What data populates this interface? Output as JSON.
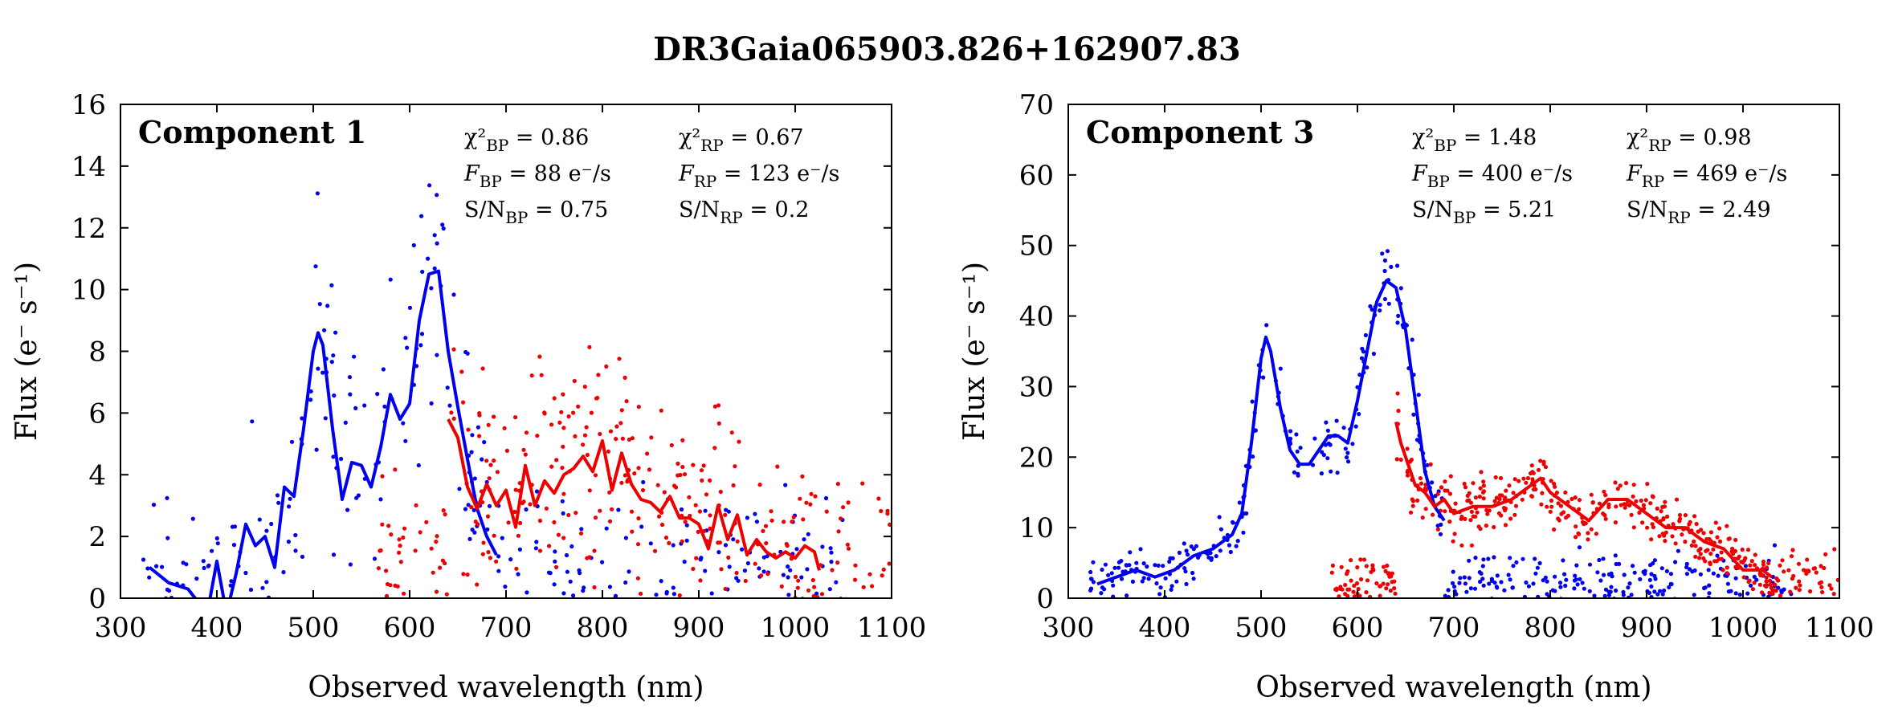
{
  "figure_title": "DR3Gaia065903.826+162907.83",
  "chart_data": [
    {
      "type": "line",
      "panel": "Component 1",
      "title": "Component 1",
      "xlabel": "Observed wavelength (nm)",
      "ylabel": "Flux (e⁻ s⁻¹)",
      "xlim": [
        300,
        1100
      ],
      "ylim": [
        0,
        16
      ],
      "xticks": [
        300,
        400,
        500,
        600,
        700,
        800,
        900,
        1000,
        1100
      ],
      "yticks": [
        0,
        2,
        4,
        6,
        8,
        10,
        12,
        14,
        16
      ],
      "grid": false,
      "stats": {
        "chi2_bp": "0.86",
        "chi2_rp": "0.67",
        "f_bp": "88 e⁻/s",
        "f_rp": "123 e⁻/s",
        "sn_bp": "0.75",
        "sn_rp": "0.2"
      },
      "series": [
        {
          "name": "BP",
          "color": "#0000ee",
          "x": [
            330,
            350,
            370,
            390,
            400,
            410,
            420,
            430,
            440,
            450,
            460,
            470,
            480,
            490,
            500,
            505,
            510,
            520,
            530,
            540,
            550,
            560,
            570,
            580,
            590,
            600,
            610,
            620,
            630,
            640,
            650,
            660,
            670,
            680,
            690
          ],
          "y": [
            1.0,
            0.5,
            0.3,
            -0.5,
            1.2,
            -0.5,
            0.8,
            2.4,
            1.7,
            2.0,
            1.0,
            3.6,
            3.3,
            5.5,
            8.0,
            8.6,
            8.2,
            5.5,
            3.2,
            4.4,
            4.3,
            3.6,
            4.9,
            6.6,
            5.8,
            6.3,
            9.0,
            10.5,
            10.6,
            8.0,
            6.2,
            4.5,
            2.9,
            2.0,
            1.4
          ]
        },
        {
          "name": "RP",
          "color": "#ee0000",
          "x": [
            640,
            650,
            660,
            670,
            680,
            690,
            700,
            710,
            720,
            730,
            740,
            750,
            760,
            770,
            780,
            790,
            800,
            810,
            820,
            830,
            840,
            850,
            860,
            870,
            880,
            890,
            900,
            910,
            920,
            930,
            940,
            950,
            960,
            970,
            980,
            990,
            1000,
            1010,
            1020,
            1025
          ],
          "y": [
            5.8,
            5.2,
            3.6,
            2.9,
            3.7,
            3.0,
            3.5,
            2.3,
            4.3,
            3.0,
            3.8,
            3.4,
            4.0,
            4.2,
            4.6,
            4.1,
            5.1,
            3.5,
            4.7,
            3.7,
            3.2,
            3.1,
            2.8,
            3.3,
            2.6,
            2.6,
            2.4,
            1.6,
            3.0,
            1.9,
            2.7,
            1.4,
            1.9,
            1.5,
            1.3,
            1.5,
            1.3,
            1.7,
            1.5,
            0.9
          ]
        }
      ]
    },
    {
      "type": "line",
      "panel": "Component 3",
      "title": "Component 3",
      "xlabel": "Observed wavelength (nm)",
      "ylabel": "Flux (e⁻ s⁻¹)",
      "xlim": [
        300,
        1100
      ],
      "ylim": [
        0,
        70
      ],
      "xticks": [
        300,
        400,
        500,
        600,
        700,
        800,
        900,
        1000,
        1100
      ],
      "yticks": [
        0,
        10,
        20,
        30,
        40,
        50,
        60,
        70
      ],
      "grid": false,
      "stats": {
        "chi2_bp": "1.48",
        "chi2_rp": "0.98",
        "f_bp": "400 e⁻/s",
        "f_rp": "469 e⁻/s",
        "sn_bp": "5.21",
        "sn_rp": "2.49"
      },
      "series": [
        {
          "name": "BP",
          "color": "#0000ee",
          "x": [
            330,
            350,
            370,
            390,
            410,
            430,
            450,
            470,
            480,
            490,
            500,
            505,
            510,
            520,
            530,
            540,
            550,
            560,
            570,
            580,
            590,
            600,
            610,
            620,
            630,
            640,
            650,
            660,
            670,
            680,
            690
          ],
          "y": [
            2,
            3,
            4,
            3,
            4,
            6,
            7,
            9,
            12,
            22,
            34,
            37,
            35,
            27,
            21,
            19,
            19,
            21,
            23,
            23,
            22,
            28,
            35,
            42,
            45,
            44,
            38,
            28,
            18,
            13,
            11
          ]
        },
        {
          "name": "RP",
          "color": "#ee0000",
          "x": [
            640,
            645,
            650,
            655,
            660,
            670,
            680,
            690,
            700,
            720,
            740,
            760,
            780,
            790,
            800,
            820,
            840,
            860,
            880,
            900,
            920,
            940,
            960,
            980,
            1000,
            1020,
            1030
          ],
          "y": [
            25,
            22,
            20,
            18,
            16,
            15,
            13,
            14,
            12,
            13,
            13,
            14,
            16,
            17,
            15,
            13,
            11,
            14,
            14,
            12,
            10,
            10,
            8,
            7,
            4,
            4,
            3
          ]
        }
      ]
    }
  ]
}
